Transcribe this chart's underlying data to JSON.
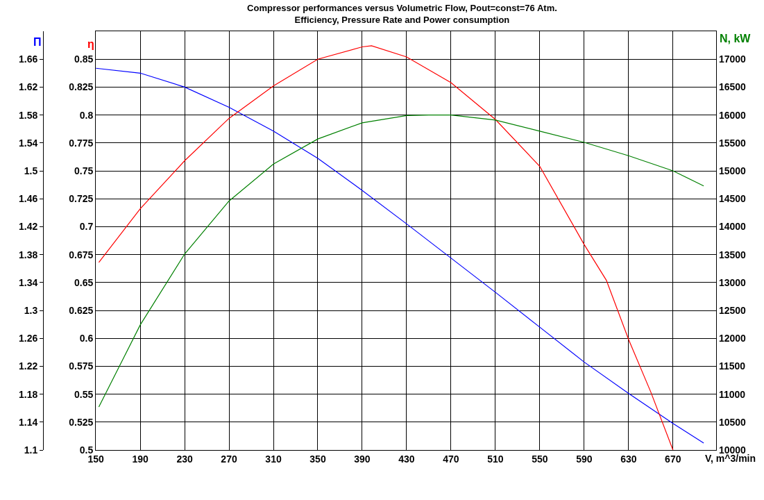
{
  "chart_data": {
    "type": "line",
    "title": "Compressor performances versus Volumetric Flow, Pout=const=76 Atm.",
    "subtitle": "Efficiency, Pressure Rate and Power consumption",
    "xlabel": "V, m^3/min",
    "ylabel": "Π",
    "y2label": "η",
    "y3label": "N, kW",
    "xlim": [
      150,
      709
    ],
    "xticks": [
      150,
      190,
      230,
      270,
      310,
      350,
      390,
      430,
      470,
      510,
      550,
      590,
      630,
      670
    ],
    "ylim": [
      1.1,
      1.7
    ],
    "yticks": [
      1.1,
      1.14,
      1.18,
      1.22,
      1.26,
      1.3,
      1.34,
      1.38,
      1.42,
      1.46,
      1.5,
      1.54,
      1.58,
      1.62,
      1.66
    ],
    "y2lim": [
      0.5,
      0.875
    ],
    "y2ticks": [
      0.5,
      0.525,
      0.55,
      0.575,
      0.6,
      0.625,
      0.65,
      0.675,
      0.7,
      0.725,
      0.75,
      0.775,
      0.8,
      0.825,
      0.85
    ],
    "y3lim": [
      10000,
      17500
    ],
    "y3ticks": [
      10000,
      10500,
      11000,
      11500,
      12000,
      12500,
      13000,
      13500,
      14000,
      14500,
      15000,
      15500,
      16000,
      16500,
      17000
    ],
    "grid": true,
    "marker": "none",
    "line_style": "solid",
    "series": [
      {
        "color": "#0000ff",
        "axis": "y",
        "x": [
          150,
          190,
          230,
          270,
          310,
          350,
          390,
          430,
          470,
          510,
          550,
          590,
          630,
          670,
          697.7
        ],
        "values": [
          1.647,
          1.64,
          1.62,
          1.591,
          1.557,
          1.518,
          1.472,
          1.424,
          1.375,
          1.326,
          1.276,
          1.226,
          1.181,
          1.138,
          1.11
        ]
      },
      {
        "color": "#ff0000",
        "axis": "y2",
        "x": [
          152.7,
          190,
          230,
          270,
          310,
          350,
          390,
          398.4,
          430,
          470,
          510,
          550,
          590,
          610,
          630,
          650,
          670
        ],
        "values": [
          0.668,
          0.716,
          0.759,
          0.797,
          0.826,
          0.85,
          0.861,
          0.862,
          0.852,
          0.829,
          0.796,
          0.754,
          0.684,
          0.652,
          0.599,
          0.552,
          0.5
        ]
      },
      {
        "color": "#008000",
        "axis": "y3",
        "x": [
          152.7,
          190,
          230,
          270,
          310,
          350,
          390,
          430,
          450,
          470,
          510,
          550,
          590,
          630,
          670,
          697.7
        ],
        "values": [
          10770,
          12240,
          13510,
          14460,
          15120,
          15570,
          15860,
          15990,
          16000,
          16000,
          15910,
          15710,
          15510,
          15270,
          15000,
          14730
        ]
      }
    ]
  }
}
